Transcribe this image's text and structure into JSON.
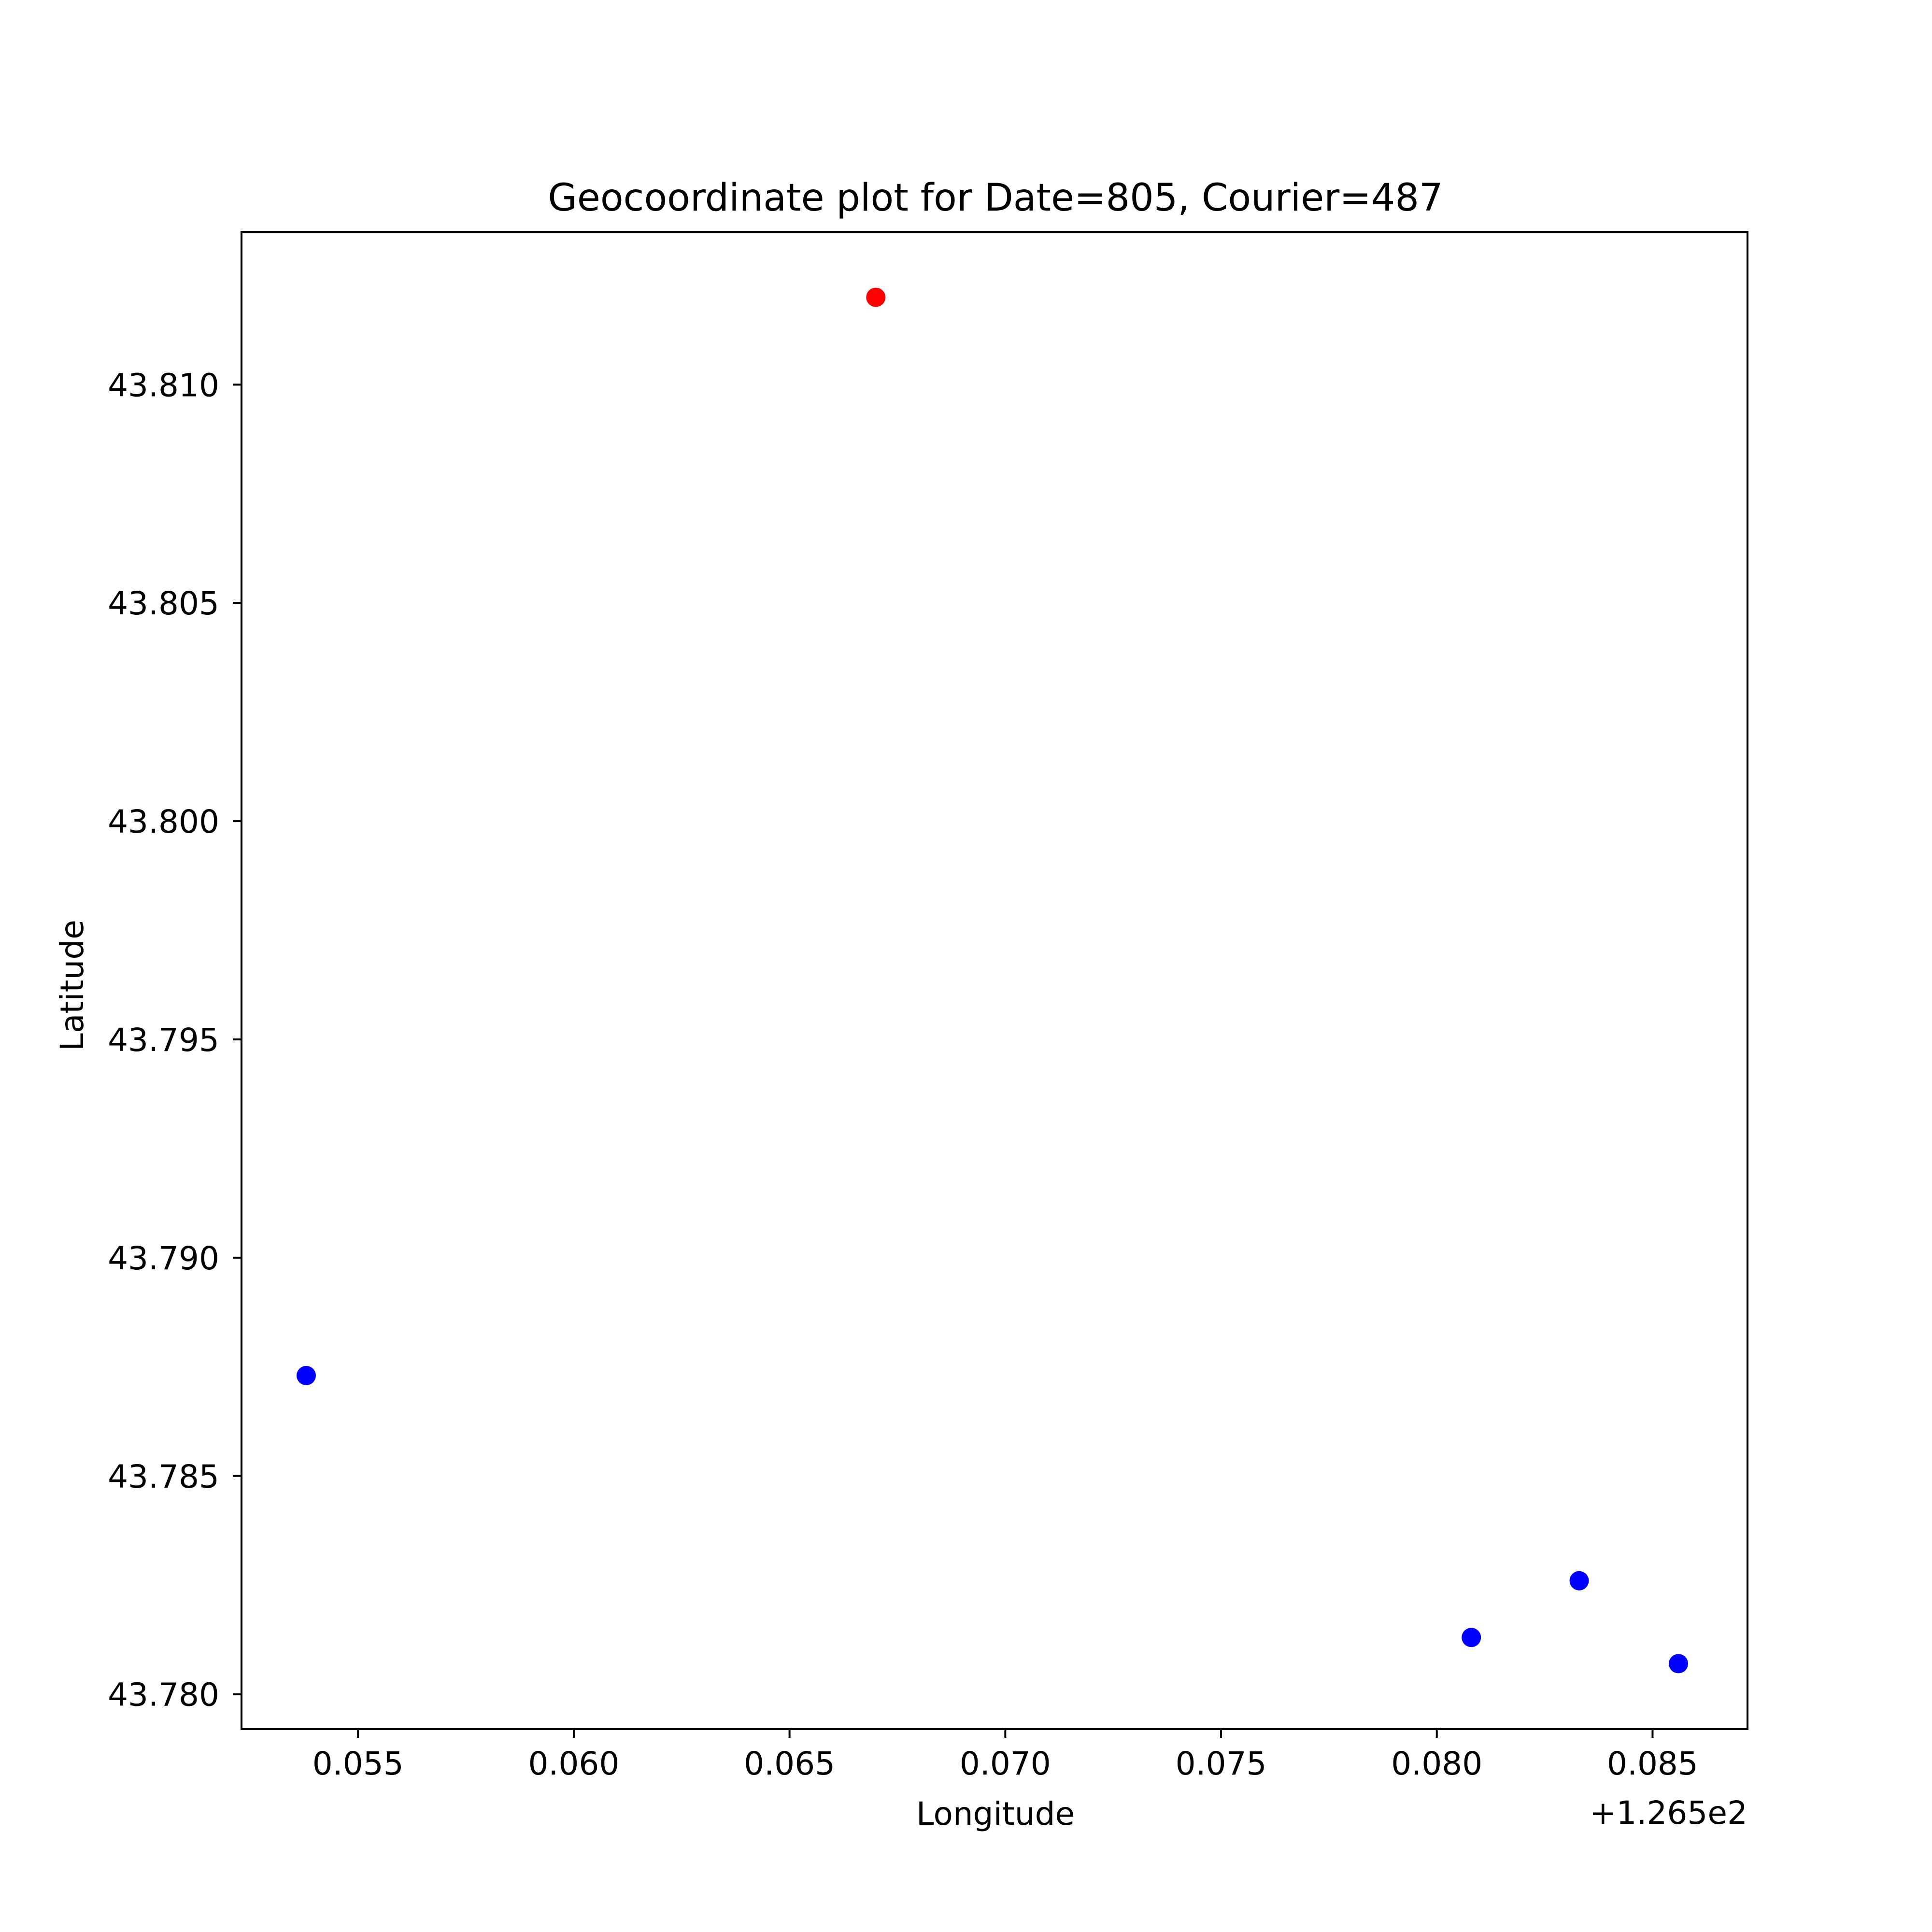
{
  "chart_data": {
    "type": "scatter",
    "title": "Geocoordinate plot for Date=805, Courier=487",
    "xlabel": "Longitude",
    "ylabel": "Latitude",
    "x_offset_label": "+1.265e2",
    "xlim": [
      0.0523,
      0.0872
    ],
    "ylim": [
      43.7792,
      43.8135
    ],
    "x_ticks": [
      0.055,
      0.06,
      0.065,
      0.07,
      0.075,
      0.08,
      0.085
    ],
    "x_tick_labels": [
      "0.055",
      "0.060",
      "0.065",
      "0.070",
      "0.075",
      "0.080",
      "0.085"
    ],
    "y_ticks": [
      43.78,
      43.785,
      43.79,
      43.795,
      43.8,
      43.805,
      43.81
    ],
    "y_tick_labels": [
      "43.780",
      "43.785",
      "43.790",
      "43.795",
      "43.800",
      "43.805",
      "43.810"
    ],
    "grid": false,
    "points": [
      {
        "x": 0.067,
        "y": 43.812,
        "color": "#ff0000"
      },
      {
        "x": 0.0538,
        "y": 43.7873,
        "color": "#0000ff"
      },
      {
        "x": 0.0833,
        "y": 43.7826,
        "color": "#0000ff"
      },
      {
        "x": 0.0808,
        "y": 43.7813,
        "color": "#0000ff"
      },
      {
        "x": 0.0856,
        "y": 43.7807,
        "color": "#0000ff"
      }
    ]
  }
}
